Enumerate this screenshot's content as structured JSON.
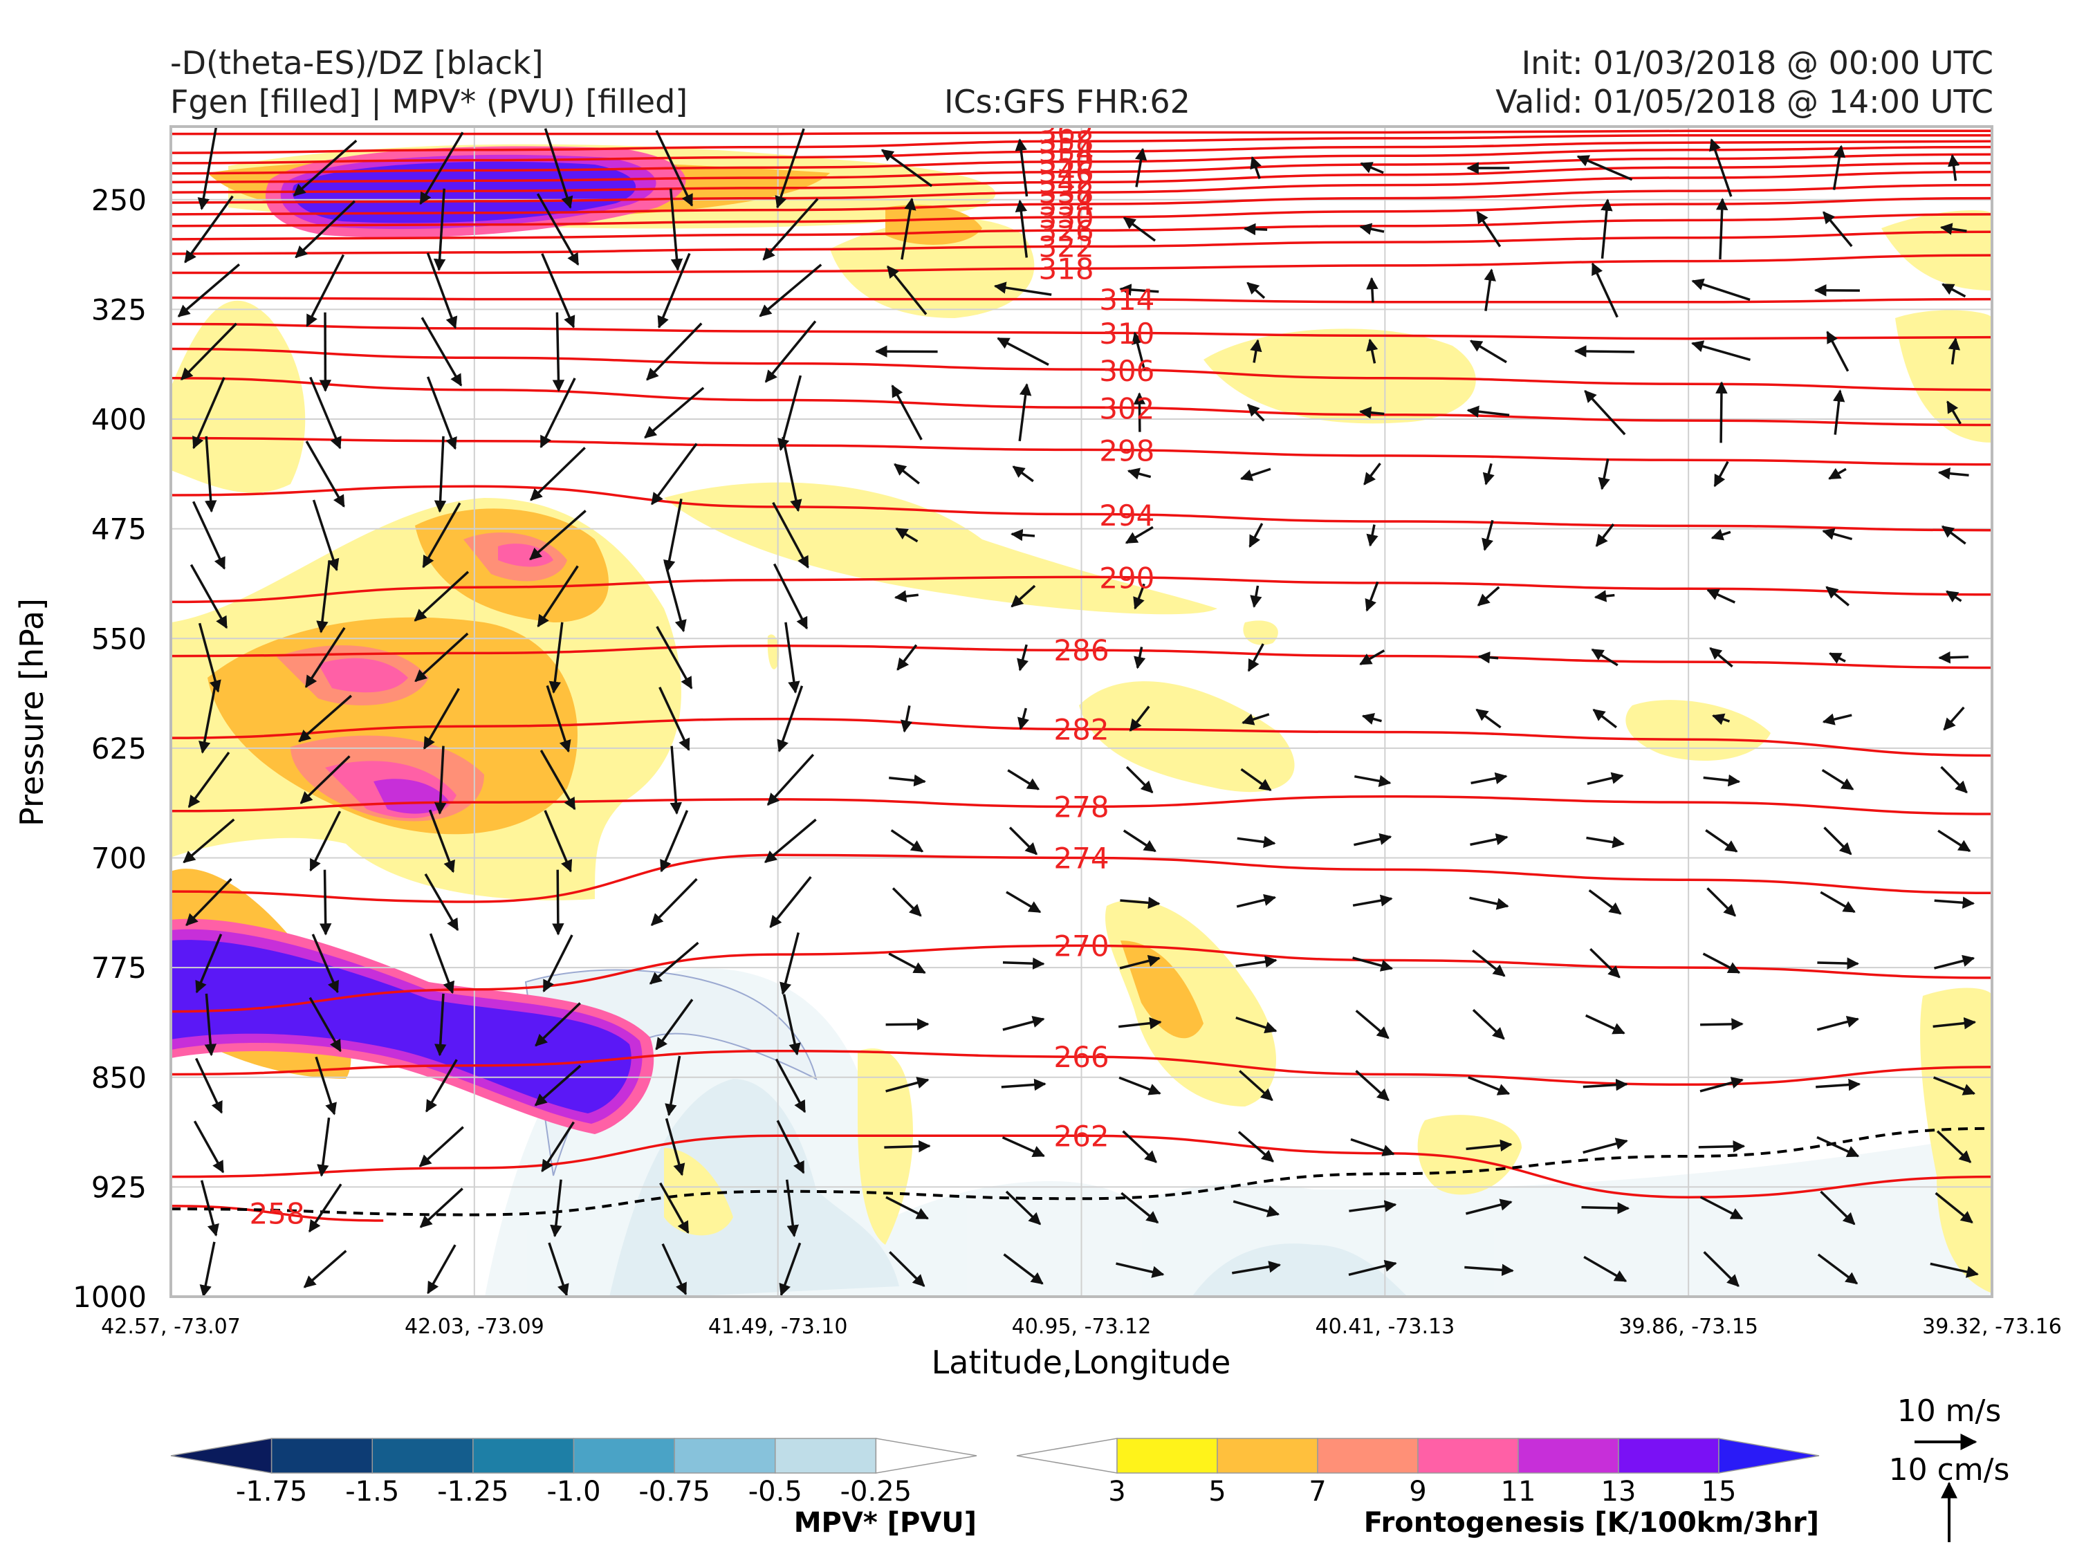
{
  "header": {
    "title_line1": "-D(theta-ES)/DZ [black]",
    "title_line2": "Fgen [filled] | MPV* (PVU) [filled]",
    "center": "ICs:GFS FHR:62",
    "init": "Init: 01/03/2018 @ 00:00 UTC",
    "valid": "Valid: 01/05/2018 @ 14:00 UTC"
  },
  "chart_data": {
    "type": "cross-section",
    "xlabel": "Latitude,Longitude",
    "ylabel": "Pressure [hPa]",
    "xticks": [
      "42.57, -73.07",
      "42.03, -73.09",
      "41.49, -73.10",
      "40.95, -73.12",
      "40.41, -73.13",
      "39.86, -73.15",
      "39.32, -73.16"
    ],
    "yticks": [
      250,
      325,
      400,
      475,
      550,
      625,
      700,
      775,
      850,
      925,
      1000
    ],
    "ylim": [
      1000,
      200
    ],
    "theta_contours": [
      {
        "label": "362",
        "pts": [
          [
            0,
            205
          ],
          [
            1,
            205
          ],
          [
            2,
            205
          ],
          [
            3,
            204
          ],
          [
            4,
            204
          ],
          [
            5,
            203
          ],
          [
            6,
            203
          ]
        ]
      },
      {
        "label": "358",
        "pts": [
          [
            0,
            218
          ],
          [
            1,
            216
          ],
          [
            2,
            214
          ],
          [
            3,
            210
          ],
          [
            4,
            208
          ],
          [
            5,
            206
          ],
          [
            6,
            206
          ]
        ]
      },
      {
        "label": "354",
        "pts": [
          [
            0,
            225
          ],
          [
            1,
            223
          ],
          [
            2,
            221
          ],
          [
            3,
            217
          ],
          [
            4,
            214
          ],
          [
            5,
            211
          ],
          [
            6,
            210
          ]
        ]
      },
      {
        "label": "350",
        "pts": [
          [
            0,
            232
          ],
          [
            1,
            230
          ],
          [
            2,
            228
          ],
          [
            3,
            224
          ],
          [
            4,
            220
          ],
          [
            5,
            216
          ],
          [
            6,
            214
          ]
        ]
      },
      {
        "label": "346",
        "pts": [
          [
            0,
            238
          ],
          [
            1,
            237
          ],
          [
            2,
            235
          ],
          [
            3,
            231
          ],
          [
            4,
            226
          ],
          [
            5,
            222
          ],
          [
            6,
            219
          ]
        ]
      },
      {
        "label": "342",
        "pts": [
          [
            0,
            245
          ],
          [
            1,
            244
          ],
          [
            2,
            242
          ],
          [
            3,
            238
          ],
          [
            4,
            233
          ],
          [
            5,
            228
          ],
          [
            6,
            225
          ]
        ]
      },
      {
        "label": "338",
        "pts": [
          [
            0,
            252
          ],
          [
            1,
            251
          ],
          [
            2,
            249
          ],
          [
            3,
            245
          ],
          [
            4,
            240
          ],
          [
            5,
            235
          ],
          [
            6,
            231
          ]
        ]
      },
      {
        "label": "334",
        "pts": [
          [
            0,
            260
          ],
          [
            1,
            259
          ],
          [
            2,
            257
          ],
          [
            3,
            253
          ],
          [
            4,
            249
          ],
          [
            5,
            244
          ],
          [
            6,
            240
          ]
        ]
      },
      {
        "label": "330",
        "pts": [
          [
            0,
            268
          ],
          [
            1,
            267
          ],
          [
            2,
            265
          ],
          [
            3,
            262
          ],
          [
            4,
            258
          ],
          [
            5,
            253
          ],
          [
            6,
            249
          ]
        ]
      },
      {
        "label": "326",
        "pts": [
          [
            0,
            277
          ],
          [
            1,
            276
          ],
          [
            2,
            274
          ],
          [
            3,
            271
          ],
          [
            4,
            268
          ],
          [
            5,
            264
          ],
          [
            6,
            260
          ]
        ]
      },
      {
        "label": "322",
        "pts": [
          [
            0,
            287
          ],
          [
            1,
            286
          ],
          [
            2,
            284
          ],
          [
            3,
            282
          ],
          [
            4,
            279
          ],
          [
            5,
            276
          ],
          [
            6,
            272
          ]
        ]
      },
      {
        "label": "318",
        "pts": [
          [
            0,
            300
          ],
          [
            1,
            300
          ],
          [
            2,
            299
          ],
          [
            3,
            297
          ],
          [
            4,
            295
          ],
          [
            5,
            292
          ],
          [
            6,
            288
          ]
        ]
      },
      {
        "label": "314",
        "pts": [
          [
            0,
            317
          ],
          [
            1,
            318
          ],
          [
            2,
            318
          ],
          [
            3,
            318
          ],
          [
            4,
            320
          ],
          [
            5,
            320
          ],
          [
            6,
            318
          ]
        ]
      },
      {
        "label": "310",
        "pts": [
          [
            0,
            335
          ],
          [
            1,
            338
          ],
          [
            2,
            340
          ],
          [
            3,
            341
          ],
          [
            4,
            343
          ],
          [
            5,
            345
          ],
          [
            6,
            344
          ]
        ]
      },
      {
        "label": "306",
        "pts": [
          [
            0,
            352
          ],
          [
            1,
            358
          ],
          [
            2,
            362
          ],
          [
            3,
            366
          ],
          [
            4,
            372
          ],
          [
            5,
            376
          ],
          [
            6,
            380
          ]
        ]
      },
      {
        "label": "302",
        "pts": [
          [
            0,
            372
          ],
          [
            1,
            380
          ],
          [
            2,
            387
          ],
          [
            3,
            392
          ],
          [
            4,
            397
          ],
          [
            5,
            401
          ],
          [
            6,
            404
          ]
        ]
      },
      {
        "label": "298",
        "pts": [
          [
            0,
            413
          ],
          [
            1,
            415
          ],
          [
            2,
            418
          ],
          [
            3,
            421
          ],
          [
            4,
            425
          ],
          [
            5,
            428
          ],
          [
            6,
            431
          ]
        ]
      },
      {
        "label": "294",
        "pts": [
          [
            0,
            452
          ],
          [
            1,
            446
          ],
          [
            2,
            460
          ],
          [
            3,
            465
          ],
          [
            4,
            470
          ],
          [
            5,
            473
          ],
          [
            6,
            476
          ]
        ]
      },
      {
        "label": "290",
        "pts": [
          [
            0,
            525
          ],
          [
            1,
            515
          ],
          [
            2,
            510
          ],
          [
            3,
            508
          ],
          [
            4,
            512
          ],
          [
            5,
            516
          ],
          [
            6,
            520
          ]
        ]
      },
      {
        "label": "286",
        "pts": [
          [
            0,
            562
          ],
          [
            1,
            560
          ],
          [
            2,
            555
          ],
          [
            3,
            558
          ],
          [
            4,
            562
          ],
          [
            5,
            566
          ],
          [
            6,
            570
          ]
        ]
      },
      {
        "label": "282",
        "pts": [
          [
            0,
            618
          ],
          [
            1,
            610
          ],
          [
            2,
            605
          ],
          [
            3,
            612
          ],
          [
            4,
            614
          ],
          [
            5,
            619
          ],
          [
            6,
            630
          ]
        ]
      },
      {
        "label": "278",
        "pts": [
          [
            0,
            668
          ],
          [
            1,
            662
          ],
          [
            2,
            660
          ],
          [
            3,
            665
          ],
          [
            4,
            658
          ],
          [
            5,
            662
          ],
          [
            6,
            670
          ]
        ]
      },
      {
        "label": "274",
        "pts": [
          [
            0,
            723
          ],
          [
            1,
            730
          ],
          [
            2,
            698
          ],
          [
            3,
            700
          ],
          [
            4,
            708
          ],
          [
            5,
            715
          ],
          [
            6,
            724
          ]
        ]
      },
      {
        "label": "270",
        "pts": [
          [
            0,
            805
          ],
          [
            1,
            790
          ],
          [
            2,
            766
          ],
          [
            3,
            760
          ],
          [
            4,
            770
          ],
          [
            5,
            775
          ],
          [
            6,
            782
          ]
        ]
      },
      {
        "label": "266",
        "pts": [
          [
            0,
            848
          ],
          [
            1,
            842
          ],
          [
            2,
            832
          ],
          [
            3,
            836
          ],
          [
            4,
            848
          ],
          [
            5,
            855
          ],
          [
            6,
            843
          ]
        ]
      },
      {
        "label": "262",
        "pts": [
          [
            0,
            918
          ],
          [
            1,
            912
          ],
          [
            2,
            890
          ],
          [
            3,
            890
          ],
          [
            4,
            902
          ],
          [
            5,
            932
          ],
          [
            6,
            918
          ]
        ]
      },
      {
        "label": "258",
        "pts": [
          [
            0,
            938
          ],
          [
            0.7,
            948
          ]
        ]
      }
    ],
    "dtheta_dz_zero_line": [
      [
        0,
        940
      ],
      [
        1,
        944
      ],
      [
        2,
        928
      ],
      [
        3,
        933
      ],
      [
        4,
        916
      ],
      [
        5,
        904
      ],
      [
        6,
        885
      ]
    ],
    "mpv_colorbar": {
      "title": "MPV* [PVU]",
      "ticks": [
        "-1.75",
        "-1.5",
        "-1.25",
        "-1.0",
        "-0.75",
        "-0.5",
        "-0.25"
      ],
      "colors": [
        "#0a1b5c",
        "#0d3c74",
        "#145d8d",
        "#1e7fa6",
        "#4aa3c6",
        "#87c2db",
        "#bfdde8",
        "#ffffff"
      ]
    },
    "fgen_colorbar": {
      "title": "Frontogenesis [K/100km/3hr]",
      "ticks": [
        "3",
        "5",
        "7",
        "9",
        "11",
        "13",
        "15"
      ],
      "colors": [
        "#ffffff",
        "#fff31a",
        "#ffc03d",
        "#ff9077",
        "#ff60a6",
        "#c72fd9",
        "#7a11f5",
        "#2a1bf7"
      ]
    },
    "vector_legend": {
      "horizontal": "10 m/s",
      "vertical": "10 cm/s"
    }
  }
}
